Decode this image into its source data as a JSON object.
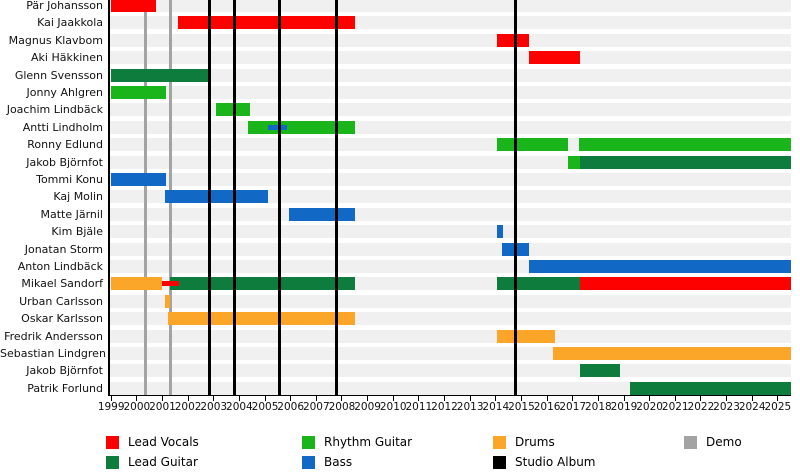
{
  "chart_data": {
    "type": "timeline",
    "description": "Band members timeline (Gantt-style) with roles as colored bars, studio album and demo release lines",
    "axis": {
      "start": 1999,
      "end": 2025,
      "tick_labels": [
        "1999",
        "2000",
        "2001",
        "2002",
        "2003",
        "2004",
        "2005",
        "2006",
        "2007",
        "2008",
        "2009",
        "2010",
        "2011",
        "2012",
        "2013",
        "2014",
        "2015",
        "2016",
        "2017",
        "2018",
        "2019",
        "2020",
        "2021",
        "2022",
        "2023",
        "2024",
        "2025"
      ],
      "grid": false,
      "plot_end": 2025.5
    },
    "roles": {
      "lead_vocals": {
        "label": "Lead Vocals",
        "color": "#fd0000"
      },
      "lead_guitar": {
        "label": "Lead Guitar",
        "color": "#0e7c3c"
      },
      "rhythm_guitar": {
        "label": "Rhythm Guitar",
        "color": "#1ab51a"
      },
      "bass": {
        "label": "Bass",
        "color": "#1169c5"
      },
      "drums": {
        "label": "Drums",
        "color": "#fba629"
      },
      "studio_album": {
        "label": "Studio Album",
        "color": "#000000"
      },
      "demo": {
        "label": "Demo",
        "color": "#a3a3a3"
      }
    },
    "legend": {
      "position": "bottom",
      "columns": [
        [
          "lead_vocals",
          "lead_guitar"
        ],
        [
          "rhythm_guitar",
          "bass"
        ],
        [
          "drums",
          "studio_album"
        ],
        [
          "demo"
        ]
      ]
    },
    "members": [
      {
        "name": "Pär Johansson",
        "segments": [
          {
            "role": "lead_vocals",
            "start": 1999.0,
            "end": 2000.75
          }
        ]
      },
      {
        "name": "Kai Jaakkola",
        "segments": [
          {
            "role": "lead_vocals",
            "start": 2001.6,
            "end": 2008.5
          }
        ]
      },
      {
        "name": "Magnus Klavbom",
        "segments": [
          {
            "role": "lead_vocals",
            "start": 2014.05,
            "end": 2015.3
          }
        ]
      },
      {
        "name": "Aki Häkkinen",
        "segments": [
          {
            "role": "lead_vocals",
            "start": 2015.3,
            "end": 2017.3
          }
        ]
      },
      {
        "name": "Glenn Svensson",
        "segments": [
          {
            "role": "lead_guitar",
            "start": 1999.0,
            "end": 2002.85
          }
        ]
      },
      {
        "name": "Jonny Ahlgren",
        "segments": [
          {
            "role": "rhythm_guitar",
            "start": 1999.0,
            "end": 2001.15
          }
        ]
      },
      {
        "name": "Joachim Lindbäck",
        "segments": [
          {
            "role": "rhythm_guitar",
            "start": 2003.1,
            "end": 2004.4
          }
        ]
      },
      {
        "name": "Antti Lindholm",
        "segments": [
          {
            "role": "rhythm_guitar",
            "start": 2004.35,
            "end": 2008.5
          },
          {
            "role": "bass",
            "start": 2005.1,
            "end": 2005.85,
            "thin": true
          }
        ]
      },
      {
        "name": "Ronny Edlund",
        "segments": [
          {
            "role": "rhythm_guitar",
            "start": 2014.05,
            "end": 2016.8
          },
          {
            "role": "rhythm_guitar",
            "start": 2017.25,
            "end": 2025.5
          }
        ]
      },
      {
        "name": "Jakob Björnfot",
        "segments": [
          {
            "role": "rhythm_guitar",
            "start": 2016.8,
            "end": 2017.3
          },
          {
            "role": "lead_guitar",
            "start": 2017.3,
            "end": 2025.5
          }
        ]
      },
      {
        "name": "Tommi Konu",
        "segments": [
          {
            "role": "bass",
            "start": 1999.0,
            "end": 2001.15
          }
        ]
      },
      {
        "name": "Kaj Molin",
        "segments": [
          {
            "role": "bass",
            "start": 2001.1,
            "end": 2005.1
          }
        ]
      },
      {
        "name": "Matte Järnil",
        "segments": [
          {
            "role": "bass",
            "start": 2005.95,
            "end": 2008.5
          }
        ]
      },
      {
        "name": "Kim Bjäle",
        "segments": [
          {
            "role": "bass",
            "start": 2014.05,
            "end": 2014.3
          }
        ]
      },
      {
        "name": "Jonatan Storm",
        "segments": [
          {
            "role": "bass",
            "start": 2014.25,
            "end": 2015.3
          }
        ]
      },
      {
        "name": "Anton Lindbäck",
        "segments": [
          {
            "role": "bass",
            "start": 2015.3,
            "end": 2025.5
          }
        ]
      },
      {
        "name": "Mikael Sandorf",
        "segments": [
          {
            "role": "drums",
            "start": 1999.0,
            "end": 2001.0
          },
          {
            "role": "lead_guitar",
            "start": 2001.3,
            "end": 2008.5
          },
          {
            "role": "lead_guitar",
            "start": 2014.05,
            "end": 2017.3
          },
          {
            "role": "lead_vocals",
            "start": 2017.3,
            "end": 2025.5
          },
          {
            "role": "lead_vocals",
            "start": 2001.0,
            "end": 2001.65,
            "thin": true
          }
        ]
      },
      {
        "name": "Urban Carlsson",
        "segments": [
          {
            "role": "drums",
            "start": 2001.1,
            "end": 2001.3
          }
        ]
      },
      {
        "name": "Oskar Karlsson",
        "segments": [
          {
            "role": "drums",
            "start": 2001.2,
            "end": 2008.5
          }
        ]
      },
      {
        "name": "Fredrik Andersson",
        "segments": [
          {
            "role": "drums",
            "start": 2014.05,
            "end": 2016.3
          }
        ]
      },
      {
        "name": "Sebastian Lindgren",
        "segments": [
          {
            "role": "drums",
            "start": 2016.25,
            "end": 2025.5
          }
        ]
      },
      {
        "name": "Jakob Björnfot",
        "segments": [
          {
            "role": "lead_guitar",
            "start": 2017.3,
            "end": 2018.85
          }
        ]
      },
      {
        "name": "Patrik Forlund",
        "segments": [
          {
            "role": "lead_guitar",
            "start": 2019.25,
            "end": 2025.5
          }
        ]
      }
    ],
    "events": {
      "studio_album_years": [
        2002.85,
        2003.8,
        2005.55,
        2007.8,
        2014.75
      ],
      "demo_years": [
        2000.35,
        2001.3
      ]
    }
  }
}
